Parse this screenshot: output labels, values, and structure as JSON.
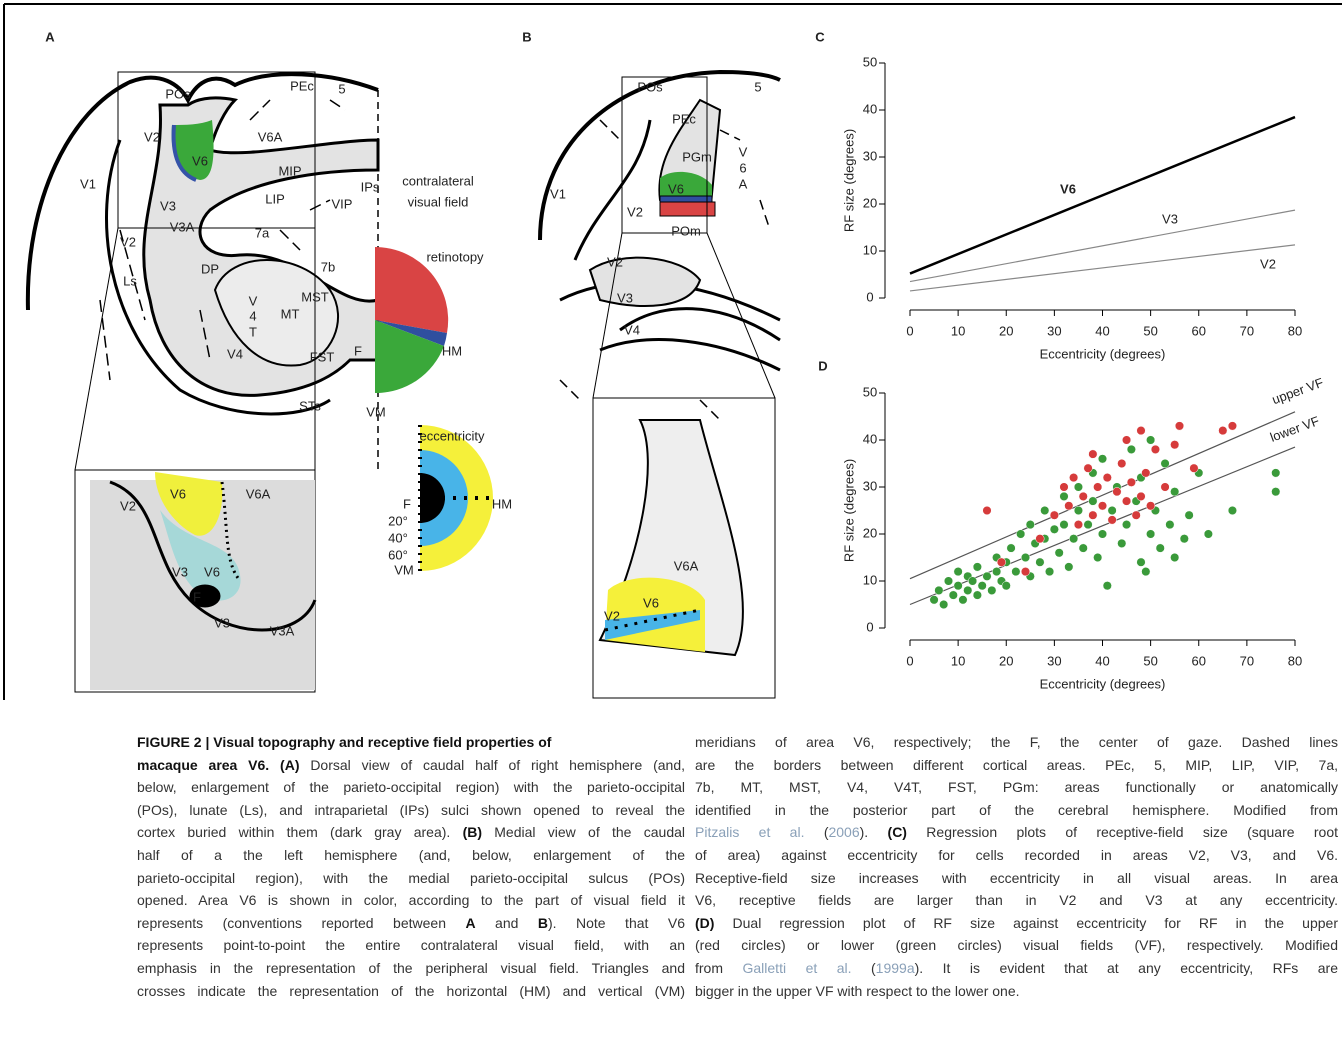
{
  "panel_a": {
    "letter": "A",
    "labels": [
      "POs",
      "PEc",
      "5",
      "V2",
      "V6A",
      "V6",
      "MIP",
      "IPs",
      "V1",
      "V3",
      "LIP",
      "VIP",
      "V3A",
      "7a",
      "V2",
      "DP",
      "7b",
      "Ls",
      "V",
      "4",
      "T",
      "MST",
      "MT",
      "V4",
      "FST",
      "STs"
    ],
    "inset_labels": [
      "V2",
      "V6",
      "V6A",
      "V3",
      "V6",
      "F",
      "V3",
      "V3A"
    ]
  },
  "legend": {
    "title_lines": [
      "contralateral",
      "visual field"
    ],
    "retinotopy": {
      "title": "retinotopy",
      "labels": [
        "F",
        "HM",
        "VM"
      ]
    },
    "eccentricity": {
      "title": "eccentricity",
      "labels": [
        "F",
        "HM",
        "20°",
        "40°",
        "60°",
        "VM"
      ]
    }
  },
  "panel_b": {
    "letter": "B",
    "labels": [
      "POs",
      "PEc",
      "5",
      "PGm",
      "V",
      "6",
      "A",
      "V1",
      "V6",
      "V2",
      "POm",
      "V2",
      "V3",
      "V4"
    ],
    "inset_labels": [
      "V6A",
      "V2",
      "V6"
    ]
  },
  "chart_data": [
    {
      "type": "line",
      "label": "C",
      "xlabel": "Eccentricity (degrees)",
      "ylabel": "RF size (degrees)",
      "xlim": [
        0,
        80
      ],
      "ylim": [
        0,
        50
      ],
      "xticks": [
        0,
        10,
        20,
        30,
        40,
        50,
        60,
        70,
        80
      ],
      "yticks": [
        0,
        10,
        20,
        30,
        40,
        50
      ],
      "series": [
        {
          "name": "V6",
          "color": "#000000",
          "bold": true,
          "x": [
            0,
            80
          ],
          "values": [
            5.2,
            38.5
          ]
        },
        {
          "name": "V3",
          "color": "#888888",
          "x": [
            0,
            80
          ],
          "values": [
            3.5,
            18.7
          ]
        },
        {
          "name": "V2",
          "color": "#888888",
          "x": [
            0,
            80
          ],
          "values": [
            1.5,
            11.3
          ]
        }
      ]
    },
    {
      "type": "scatter",
      "label": "D",
      "xlabel": "Eccentricity (degrees)",
      "ylabel": "RF size (degrees)",
      "xlim": [
        0,
        80
      ],
      "ylim": [
        0,
        50
      ],
      "xticks": [
        0,
        10,
        20,
        30,
        40,
        50,
        60,
        70,
        80
      ],
      "yticks": [
        0,
        10,
        20,
        30,
        40,
        50
      ],
      "series": [
        {
          "color": "#3a9a3a",
          "x": [
            5,
            6,
            7,
            8,
            9,
            10,
            10,
            11,
            12,
            12,
            13,
            14,
            14,
            15,
            16,
            17,
            18,
            18,
            19,
            20,
            20,
            21,
            22,
            23,
            24,
            25,
            25,
            26,
            27,
            28,
            28,
            29,
            30,
            31,
            32,
            32,
            33,
            34,
            35,
            35,
            36,
            37,
            38,
            38,
            39,
            40,
            40,
            41,
            42,
            43,
            44,
            45,
            46,
            47,
            48,
            48,
            50,
            50,
            51,
            52,
            53,
            54,
            55,
            56,
            57,
            58,
            60,
            62,
            67,
            76,
            76,
            55,
            49
          ],
          "values": [
            6,
            8,
            5,
            10,
            7,
            9,
            12,
            6,
            8,
            11,
            10,
            7,
            13,
            9,
            11,
            8,
            12,
            15,
            10,
            14,
            9,
            17,
            12,
            20,
            15,
            11,
            22,
            18,
            14,
            25,
            19,
            12,
            21,
            16,
            28,
            22,
            13,
            19,
            25,
            30,
            17,
            22,
            33,
            27,
            15,
            20,
            36,
            9,
            25,
            30,
            18,
            22,
            38,
            27,
            14,
            32,
            20,
            40,
            25,
            17,
            35,
            22,
            29,
            43,
            19,
            24,
            33,
            20,
            25,
            29,
            33,
            15,
            12
          ]
        },
        {
          "color": "#d63b3b",
          "x": [
            16,
            19,
            24,
            27,
            30,
            32,
            33,
            34,
            35,
            36,
            37,
            38,
            39,
            40,
            41,
            42,
            43,
            44,
            45,
            46,
            47,
            48,
            49,
            50,
            51,
            53,
            55,
            56,
            48,
            59,
            65,
            67,
            38,
            45
          ],
          "values": [
            25,
            14,
            12,
            19,
            24,
            30,
            26,
            32,
            22,
            28,
            34,
            24,
            30,
            26,
            32,
            23,
            29,
            35,
            27,
            31,
            24,
            28,
            33,
            26,
            38,
            30,
            39,
            43,
            42,
            34,
            42,
            43,
            37,
            40
          ]
        }
      ],
      "lines": [
        {
          "name": "upper VF",
          "color": "#555555",
          "x": [
            0,
            80
          ],
          "values": [
            10.5,
            46
          ]
        },
        {
          "name": "lower VF",
          "color": "#555555",
          "x": [
            0,
            80
          ],
          "values": [
            5,
            38.5
          ]
        }
      ]
    }
  ],
  "caption": {
    "left": [
      [
        {
          "text": "FIGURE 2 | Visual topography and receptive field properties of",
          "style": "bold"
        }
      ],
      [
        {
          "text": "macaque area V6. ",
          "style": "bold"
        },
        {
          "text": "(A)",
          "style": "bold"
        },
        {
          "text": " Dorsal view of caudal half of right hemisphere (and,"
        }
      ],
      [
        {
          "text": "below, enlargement of the parieto-occipital region) with the parieto-occipital"
        }
      ],
      [
        {
          "text": "(POs), lunate (Ls), and intraparietal (IPs) sulci shown opened to reveal the"
        }
      ],
      [
        {
          "text": "cortex buried within them (dark gray area). "
        },
        {
          "text": "(B)",
          "style": "bold"
        },
        {
          "text": " Medial view of the caudal"
        }
      ],
      [
        {
          "text": "half of a the left hemisphere (and, below, enlargement of the"
        }
      ],
      [
        {
          "text": "parieto-occipital region), with the medial parieto-occipital sulcus (POs)"
        }
      ],
      [
        {
          "text": "opened. Area V6 is shown in color, according to the part of visual field it"
        }
      ],
      [
        {
          "text": "represents (conventions reported between "
        },
        {
          "text": "A",
          "style": "bold"
        },
        {
          "text": " and "
        },
        {
          "text": "B",
          "style": "bold"
        },
        {
          "text": "). Note that V6"
        }
      ],
      [
        {
          "text": "represents point-to-point the entire contralateral visual field, with an"
        }
      ],
      [
        {
          "text": "emphasis in the representation of the peripheral visual field. Triangles and"
        }
      ],
      [
        {
          "text": "crosses indicate the representation of the horizontal (HM) and vertical (VM)"
        }
      ]
    ],
    "right": [
      [
        {
          "text": "meridians of area V6, respectively; the F, the center of gaze. Dashed lines"
        }
      ],
      [
        {
          "text": "are the borders between different cortical areas. PEc, 5, MIP, LIP, VIP, 7a,"
        }
      ],
      [
        {
          "text": "7b, MT, MST, V4, V4T, FST, PGm: areas functionally or anatomically"
        }
      ],
      [
        {
          "text": "identified in the posterior part of the cerebral hemisphere. Modified from"
        }
      ],
      [
        {
          "text": "Pitzalis et al.",
          "style": "link"
        },
        {
          "text": " ("
        },
        {
          "text": "2006",
          "style": "link"
        },
        {
          "text": "). "
        },
        {
          "text": "(C)",
          "style": "bold"
        },
        {
          "text": " Regression plots of receptive-field size (square root"
        }
      ],
      [
        {
          "text": "of area) against eccentricity for cells recorded in areas V2, V3, and V6."
        }
      ],
      [
        {
          "text": "Receptive-field size increases with eccentricity in all visual areas. In area"
        }
      ],
      [
        {
          "text": "V6, receptive fields are larger than in V2 and V3 at any eccentricity."
        }
      ],
      [
        {
          "text": "(D)",
          "style": "bold"
        },
        {
          "text": " Dual regression plot of RF size against eccentricity for RF in the upper"
        }
      ],
      [
        {
          "text": "(red circles) or lower (green circles) visual fields (VF), respectively. Modified"
        }
      ],
      [
        {
          "text": "from "
        },
        {
          "text": "Galletti et al.",
          "style": "link"
        },
        {
          "text": " ("
        },
        {
          "text": "1999a",
          "style": "link"
        },
        {
          "text": "). It is evident that at any eccentricity, RFs are"
        }
      ],
      [
        {
          "text": "bigger in the upper VF with respect to the lower one."
        }
      ]
    ]
  }
}
